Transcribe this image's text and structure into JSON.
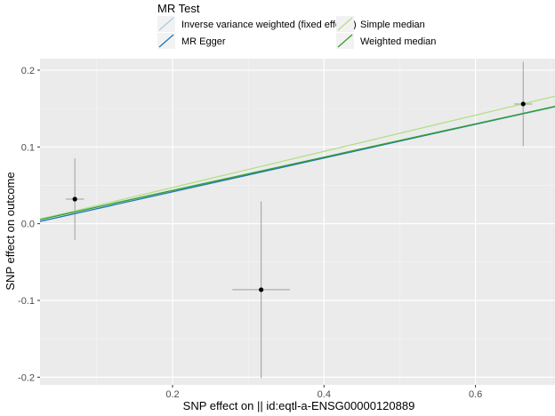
{
  "chart_data": {
    "type": "scatter",
    "title": "",
    "xlabel": "SNP effect on  || id:eqtl-a-ENSG00000120889",
    "ylabel": "SNP effect on outcome",
    "xlim": [
      0.025,
      0.705
    ],
    "ylim": [
      -0.21,
      0.215
    ],
    "x_ticks": [
      0.2,
      0.4,
      0.6
    ],
    "y_ticks": [
      -0.2,
      -0.1,
      0.0,
      0.1,
      0.2
    ],
    "x_tick_labels": [
      "0.2",
      "0.4",
      "0.6"
    ],
    "y_tick_labels": [
      "-0.2",
      "-0.1",
      "0.0",
      "0.1",
      "0.2"
    ],
    "grid": true,
    "background": "#ebebeb",
    "points": [
      {
        "x": 0.071,
        "y": 0.032,
        "x_err": 0.012,
        "y_err": 0.053
      },
      {
        "x": 0.317,
        "y": -0.086,
        "x_err": 0.038,
        "y_err": 0.115
      },
      {
        "x": 0.663,
        "y": 0.156,
        "x_err": 0.012,
        "y_err": 0.055
      }
    ],
    "legend": {
      "title": "MR Test",
      "position": "top",
      "entries": [
        {
          "label": "Inverse variance weighted (fixed effects)",
          "color": "#a6cee3"
        },
        {
          "label": "Simple median",
          "color": "#b2df8a"
        },
        {
          "label": "MR Egger",
          "color": "#1f78b4"
        },
        {
          "label": "Weighted median",
          "color": "#33a02c"
        }
      ]
    },
    "lines": [
      {
        "name": "Inverse variance weighted (fixed effects)",
        "color": "#a6cee3",
        "intercept": 0,
        "slope": 0.2155
      },
      {
        "name": "MR Egger",
        "color": "#1f78b4",
        "intercept": -0.0025,
        "slope": 0.2201
      },
      {
        "name": "Simple median",
        "color": "#b2df8a",
        "intercept": 0,
        "slope": 0.2356
      },
      {
        "name": "Weighted median",
        "color": "#33a02c",
        "intercept": 0,
        "slope": 0.2168
      }
    ]
  }
}
